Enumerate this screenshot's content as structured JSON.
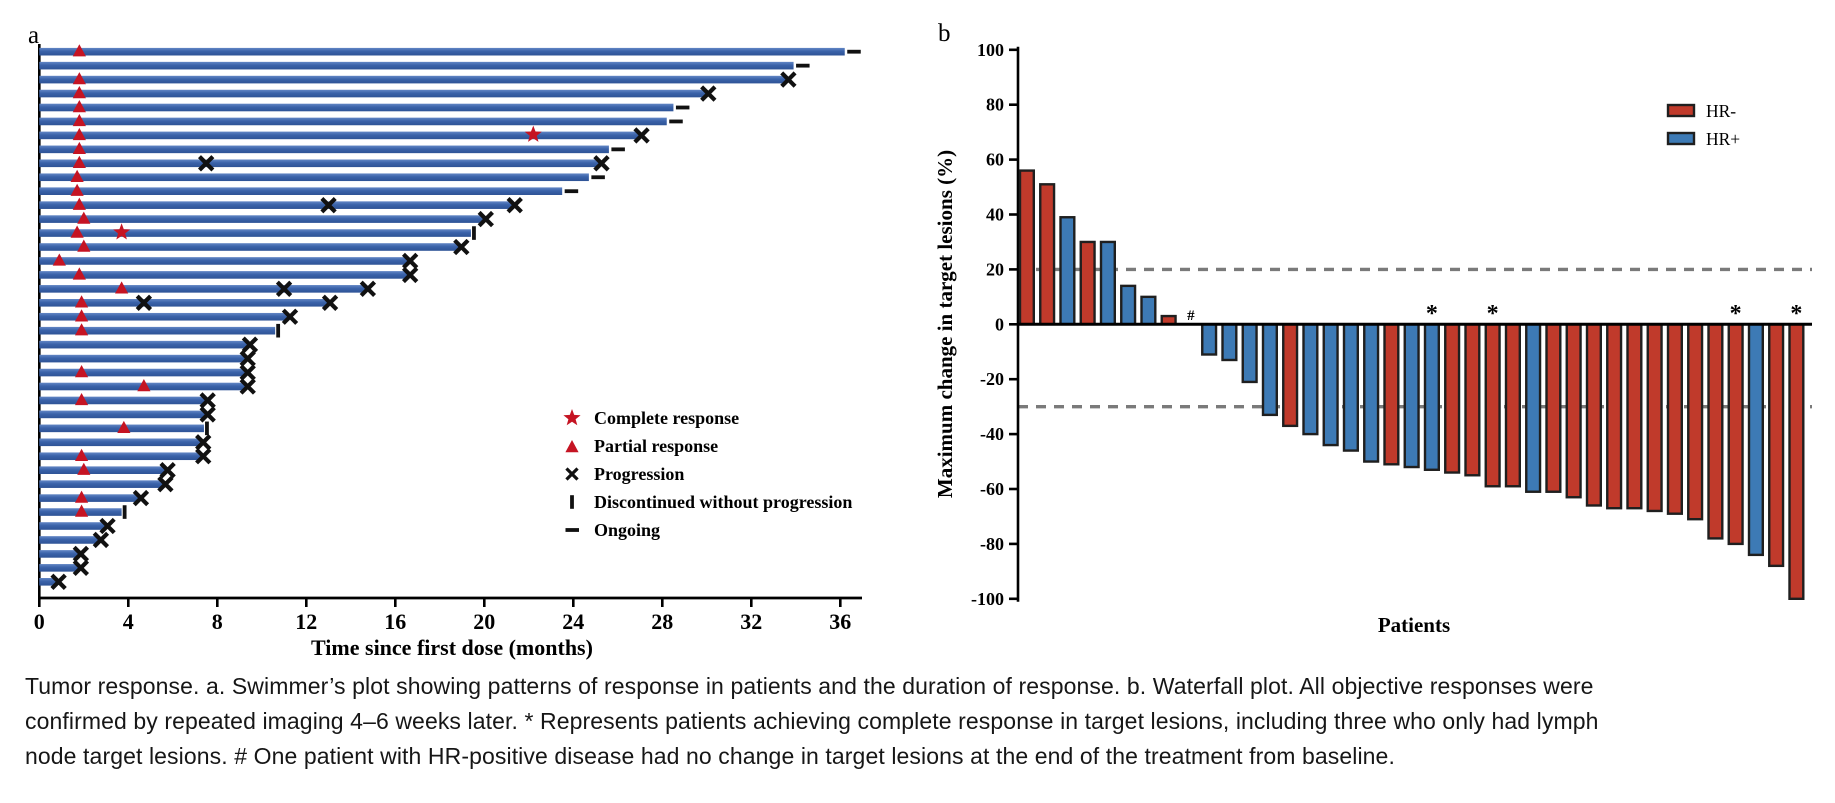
{
  "figure": {
    "panel_a_label": "a",
    "panel_b_label": "b"
  },
  "colors": {
    "swimmer_bar": "#3A62A9",
    "response_marker_red": "#C51423",
    "marker_black": "#111111",
    "hr_negative": "#C03A2B",
    "hr_positive": "#3D7AB5",
    "bar_stroke": "#1F1F1F",
    "ref_line": "#7A7A7A",
    "axis": "#000000"
  },
  "chart_data": [
    {
      "type": "bar",
      "panel": "a",
      "orientation": "horizontal",
      "title": "Swimmer plot",
      "xlabel": "Time since first dose (months)",
      "ylabel": "",
      "xlim": [
        0,
        37
      ],
      "xticks": [
        0,
        4,
        8,
        12,
        16,
        20,
        24,
        28,
        32,
        36
      ],
      "grid": false,
      "legend_position": "right-middle",
      "legend": [
        {
          "symbol": "star",
          "label": "Complete response",
          "color": "#C51423"
        },
        {
          "symbol": "triangle",
          "label": "Partial response",
          "color": "#C51423"
        },
        {
          "symbol": "cross",
          "label": "Progression",
          "color": "#111111"
        },
        {
          "symbol": "vbar",
          "label": "Discontinued without progression",
          "color": "#111111"
        },
        {
          "symbol": "dash",
          "label": "Ongoing",
          "color": "#111111"
        }
      ],
      "patients": [
        {
          "duration": 36.2,
          "end": "ongoing",
          "markers": [
            {
              "type": "triangle",
              "month": 1.8
            }
          ]
        },
        {
          "duration": 33.9,
          "end": "ongoing",
          "markers": []
        },
        {
          "duration": 33.6,
          "end": "progression",
          "markers": [
            {
              "type": "triangle",
              "month": 1.8
            }
          ]
        },
        {
          "duration": 30.0,
          "end": "progression",
          "markers": [
            {
              "type": "triangle",
              "month": 1.8
            }
          ]
        },
        {
          "duration": 28.5,
          "end": "ongoing",
          "markers": [
            {
              "type": "triangle",
              "month": 1.8
            }
          ]
        },
        {
          "duration": 28.2,
          "end": "ongoing",
          "markers": [
            {
              "type": "triangle",
              "month": 1.8
            }
          ]
        },
        {
          "duration": 27.0,
          "end": "progression",
          "markers": [
            {
              "type": "triangle",
              "month": 1.8
            },
            {
              "type": "star",
              "month": 22.2
            }
          ]
        },
        {
          "duration": 25.6,
          "end": "ongoing",
          "markers": [
            {
              "type": "triangle",
              "month": 1.8
            }
          ]
        },
        {
          "duration": 25.2,
          "end": "progression",
          "markers": [
            {
              "type": "triangle",
              "month": 1.8
            },
            {
              "type": "cross",
              "month": 7.5
            }
          ]
        },
        {
          "duration": 24.7,
          "end": "ongoing",
          "markers": [
            {
              "type": "triangle",
              "month": 1.7
            }
          ]
        },
        {
          "duration": 23.5,
          "end": "ongoing",
          "markers": [
            {
              "type": "triangle",
              "month": 1.7
            }
          ]
        },
        {
          "duration": 21.3,
          "end": "progression",
          "markers": [
            {
              "type": "triangle",
              "month": 1.8
            },
            {
              "type": "cross",
              "month": 13.0
            }
          ]
        },
        {
          "duration": 20.0,
          "end": "progression",
          "markers": [
            {
              "type": "triangle",
              "month": 2.0
            }
          ]
        },
        {
          "duration": 19.4,
          "end": "discontinued",
          "markers": [
            {
              "type": "triangle",
              "month": 1.7
            },
            {
              "type": "star",
              "month": 3.7
            }
          ]
        },
        {
          "duration": 18.9,
          "end": "progression",
          "markers": [
            {
              "type": "triangle",
              "month": 2.0
            }
          ]
        },
        {
          "duration": 16.6,
          "end": "progression",
          "markers": [
            {
              "type": "triangle",
              "month": 0.9
            }
          ]
        },
        {
          "duration": 16.6,
          "end": "progression",
          "markers": [
            {
              "type": "triangle",
              "month": 1.8
            }
          ]
        },
        {
          "duration": 14.7,
          "end": "progression",
          "markers": [
            {
              "type": "triangle",
              "month": 3.7
            },
            {
              "type": "cross",
              "month": 11.0
            }
          ]
        },
        {
          "duration": 13.0,
          "end": "progression",
          "markers": [
            {
              "type": "triangle",
              "month": 1.9
            },
            {
              "type": "cross",
              "month": 4.7
            }
          ]
        },
        {
          "duration": 11.2,
          "end": "progression",
          "markers": [
            {
              "type": "triangle",
              "month": 1.9
            }
          ]
        },
        {
          "duration": 10.6,
          "end": "discontinued",
          "markers": [
            {
              "type": "triangle",
              "month": 1.9
            }
          ]
        },
        {
          "duration": 9.4,
          "end": "progression",
          "markers": []
        },
        {
          "duration": 9.3,
          "end": "progression",
          "markers": []
        },
        {
          "duration": 9.3,
          "end": "progression",
          "markers": [
            {
              "type": "triangle",
              "month": 1.9
            }
          ]
        },
        {
          "duration": 9.3,
          "end": "progression",
          "markers": [
            {
              "type": "triangle",
              "month": 4.7
            }
          ]
        },
        {
          "duration": 7.5,
          "end": "progression",
          "markers": [
            {
              "type": "triangle",
              "month": 1.9
            }
          ]
        },
        {
          "duration": 7.5,
          "end": "progression",
          "markers": []
        },
        {
          "duration": 7.4,
          "end": "discontinued",
          "markers": [
            {
              "type": "triangle",
              "month": 3.8
            }
          ]
        },
        {
          "duration": 7.3,
          "end": "progression",
          "markers": []
        },
        {
          "duration": 7.3,
          "end": "progression",
          "markers": [
            {
              "type": "triangle",
              "month": 1.9
            }
          ]
        },
        {
          "duration": 5.7,
          "end": "progression",
          "markers": [
            {
              "type": "triangle",
              "month": 2.0
            }
          ]
        },
        {
          "duration": 5.6,
          "end": "progression",
          "markers": []
        },
        {
          "duration": 4.5,
          "end": "progression",
          "markers": [
            {
              "type": "triangle",
              "month": 1.9
            }
          ]
        },
        {
          "duration": 3.7,
          "end": "discontinued",
          "markers": [
            {
              "type": "triangle",
              "month": 1.9
            }
          ]
        },
        {
          "duration": 3.0,
          "end": "progression",
          "markers": []
        },
        {
          "duration": 2.7,
          "end": "progression",
          "markers": []
        },
        {
          "duration": 1.8,
          "end": "progression",
          "markers": []
        },
        {
          "duration": 1.8,
          "end": "progression",
          "markers": []
        },
        {
          "duration": 0.8,
          "end": "progression",
          "markers": []
        }
      ]
    },
    {
      "type": "bar",
      "panel": "b",
      "title": "Waterfall plot",
      "xlabel": "Patients",
      "ylabel": "Maximum change in target lesions (%)",
      "ylim": [
        -100,
        100
      ],
      "yticks": [
        100,
        80,
        60,
        40,
        20,
        0,
        -20,
        -40,
        -60,
        -80,
        -100
      ],
      "reference_lines": [
        20,
        -30
      ],
      "grid": false,
      "legend_position": "top-right",
      "legend": [
        {
          "label": "HR-",
          "color": "#C03A2B"
        },
        {
          "label": "HR+",
          "color": "#3D7AB5"
        }
      ],
      "bars": [
        {
          "value": 56,
          "group": "HR-"
        },
        {
          "value": 51,
          "group": "HR-"
        },
        {
          "value": 39,
          "group": "HR+"
        },
        {
          "value": 30,
          "group": "HR-"
        },
        {
          "value": 30,
          "group": "HR+"
        },
        {
          "value": 14,
          "group": "HR+"
        },
        {
          "value": 10,
          "group": "HR+"
        },
        {
          "value": 3,
          "group": "HR-"
        },
        {
          "value": 0,
          "group": "HR+",
          "annotation": "#"
        },
        {
          "value": -11,
          "group": "HR+"
        },
        {
          "value": -13,
          "group": "HR+"
        },
        {
          "value": -21,
          "group": "HR+"
        },
        {
          "value": -33,
          "group": "HR+"
        },
        {
          "value": -37,
          "group": "HR-"
        },
        {
          "value": -40,
          "group": "HR+"
        },
        {
          "value": -44,
          "group": "HR+"
        },
        {
          "value": -46,
          "group": "HR+"
        },
        {
          "value": -50,
          "group": "HR+"
        },
        {
          "value": -51,
          "group": "HR-"
        },
        {
          "value": -52,
          "group": "HR+"
        },
        {
          "value": -53,
          "group": "HR+",
          "annotation": "*"
        },
        {
          "value": -54,
          "group": "HR-"
        },
        {
          "value": -55,
          "group": "HR-"
        },
        {
          "value": -59,
          "group": "HR-",
          "annotation": "*"
        },
        {
          "value": -59,
          "group": "HR-"
        },
        {
          "value": -61,
          "group": "HR+"
        },
        {
          "value": -61,
          "group": "HR-"
        },
        {
          "value": -63,
          "group": "HR-"
        },
        {
          "value": -66,
          "group": "HR-"
        },
        {
          "value": -67,
          "group": "HR-"
        },
        {
          "value": -67,
          "group": "HR-"
        },
        {
          "value": -68,
          "group": "HR-"
        },
        {
          "value": -69,
          "group": "HR-"
        },
        {
          "value": -71,
          "group": "HR-"
        },
        {
          "value": -78,
          "group": "HR-"
        },
        {
          "value": -80,
          "group": "HR-",
          "annotation": "*"
        },
        {
          "value": -84,
          "group": "HR+"
        },
        {
          "value": -88,
          "group": "HR-"
        },
        {
          "value": -100,
          "group": "HR-",
          "annotation": "*"
        }
      ]
    }
  ],
  "caption": {
    "lines": [
      "Tumor response. a. Swimmer’s plot showing patterns of response in patients and the duration of response. b. Waterfall plot. All objective responses were",
      "confirmed by repeated imaging 4–6 weeks later. * Represents patients achieving complete response in target lesions, including three who only had lymph",
      "node target lesions. # One patient with HR-positive disease had no change in target lesions at the end of the treatment from baseline."
    ]
  }
}
